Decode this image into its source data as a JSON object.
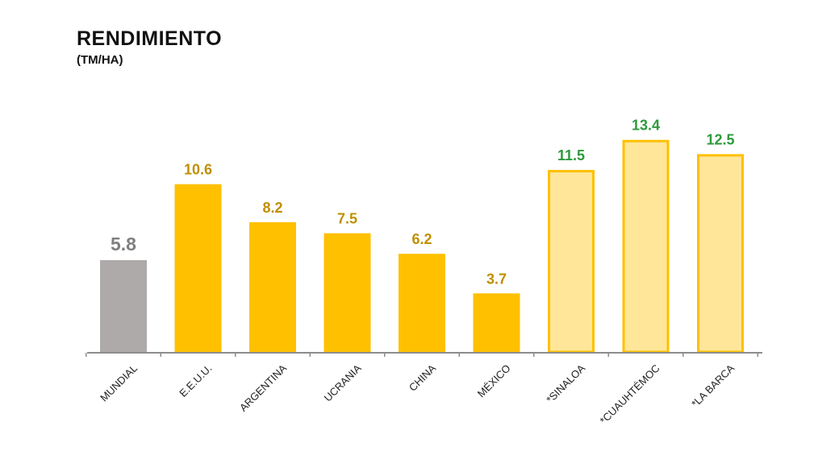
{
  "chart_data": {
    "type": "bar",
    "title": "RENDIMIENTO",
    "subtitle": "(TM/HA)",
    "categories": [
      "MUNDIAL",
      "E.E.U.U.",
      "ARGENTINA",
      "UCRANIA",
      "CHINA",
      "MÉXICO",
      "*SINALOA",
      "*CUAUHTÉMOC",
      "*LA BARCA"
    ],
    "values": [
      5.8,
      10.6,
      8.2,
      7.5,
      6.2,
      3.7,
      11.5,
      13.4,
      12.5
    ],
    "labels": [
      "5.8",
      "10.6",
      "8.2",
      "7.5",
      "6.2",
      "3.7",
      "11.5",
      "13.4",
      "12.5"
    ],
    "ylim": [
      0,
      15
    ],
    "grid": false,
    "legend": "none",
    "styles": [
      {
        "fill": "#aeaaaa",
        "stroke": "none",
        "label_color": "#7f7f7f"
      },
      {
        "fill": "#ffc000",
        "stroke": "none",
        "label_color": "#bf8f00"
      },
      {
        "fill": "#ffc000",
        "stroke": "none",
        "label_color": "#bf8f00"
      },
      {
        "fill": "#ffc000",
        "stroke": "none",
        "label_color": "#bf8f00"
      },
      {
        "fill": "#ffc000",
        "stroke": "none",
        "label_color": "#bf8f00"
      },
      {
        "fill": "#ffc000",
        "stroke": "none",
        "label_color": "#bf8f00"
      },
      {
        "fill": "#ffe699",
        "stroke": "#ffc000",
        "label_color": "#2e9a3c"
      },
      {
        "fill": "#ffe699",
        "stroke": "#ffc000",
        "label_color": "#2e9a3c"
      },
      {
        "fill": "#ffe699",
        "stroke": "#ffc000",
        "label_color": "#2e9a3c"
      }
    ]
  }
}
